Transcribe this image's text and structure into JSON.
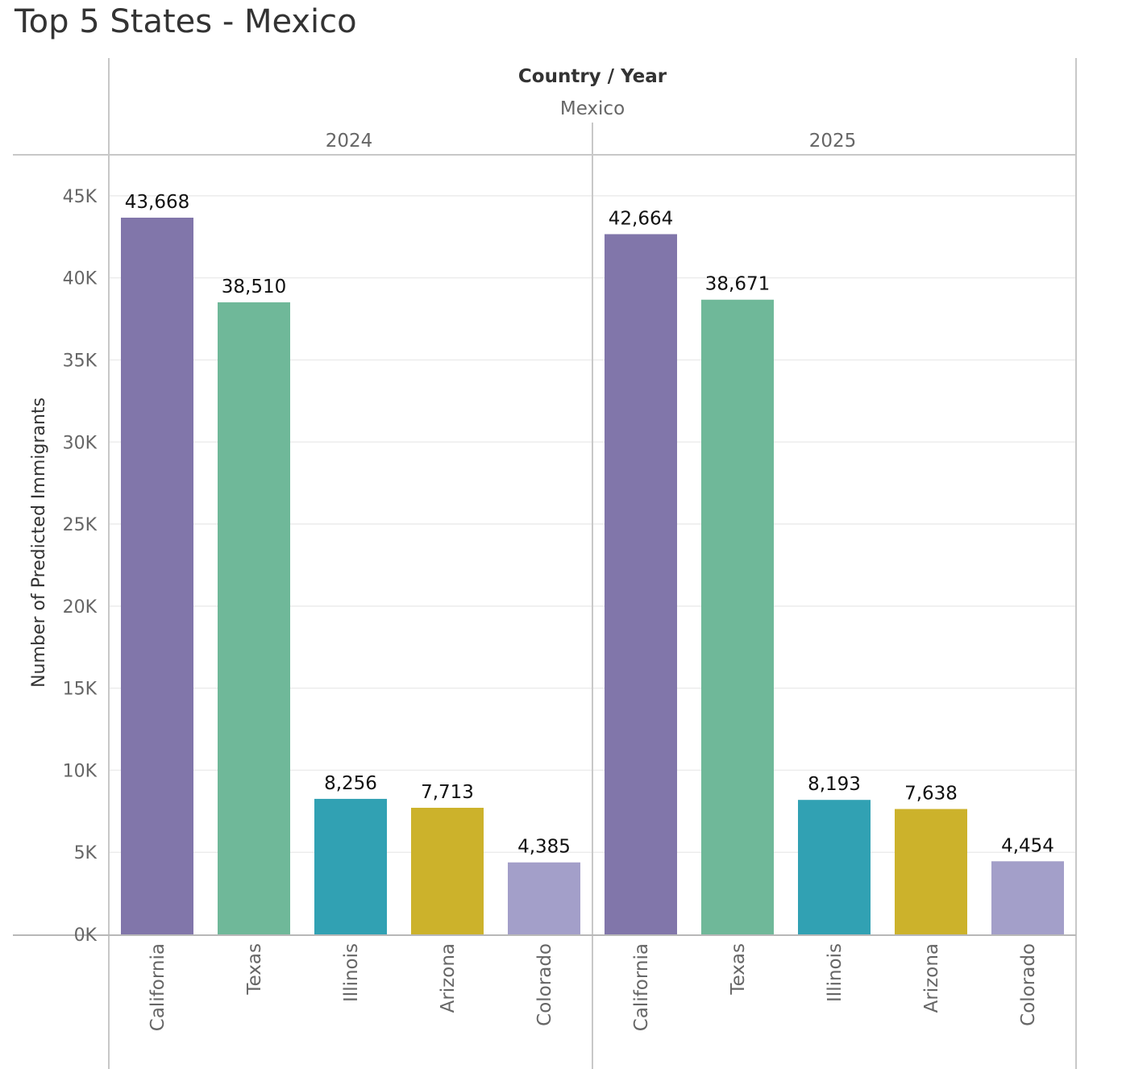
{
  "title": "Top 5 States - Mexico",
  "header": {
    "field_label": "Country / Year",
    "country": "Mexico"
  },
  "colors": {
    "California": "#8176aa",
    "Texas": "#6fb899",
    "Illinois": "#31a1b3",
    "Arizona": "#ccb22b",
    "Colorado": "#a39fc9"
  },
  "chart_data": {
    "type": "bar",
    "title": "Top 5 States - Mexico",
    "ylabel": "Number of Predicted Immigrants",
    "xlabel": "",
    "ylim": [
      0,
      47500
    ],
    "y_ticks": [
      "0K",
      "5K",
      "10K",
      "15K",
      "20K",
      "25K",
      "30K",
      "35K",
      "40K",
      "45K"
    ],
    "y_tick_values": [
      0,
      5000,
      10000,
      15000,
      20000,
      25000,
      30000,
      35000,
      40000,
      45000
    ],
    "grid": true,
    "categories": [
      "California",
      "Texas",
      "Illinois",
      "Arizona",
      "Colorado"
    ],
    "panels": [
      {
        "year": "2024",
        "values": [
          43668,
          38510,
          8256,
          7713,
          4385
        ],
        "labels": [
          "43,668",
          "38,510",
          "8,256",
          "7,713",
          "4,385"
        ]
      },
      {
        "year": "2025",
        "values": [
          42664,
          38671,
          8193,
          7638,
          4454
        ],
        "labels": [
          "42,664",
          "38,671",
          "8,193",
          "7,638",
          "4,454"
        ]
      }
    ]
  }
}
